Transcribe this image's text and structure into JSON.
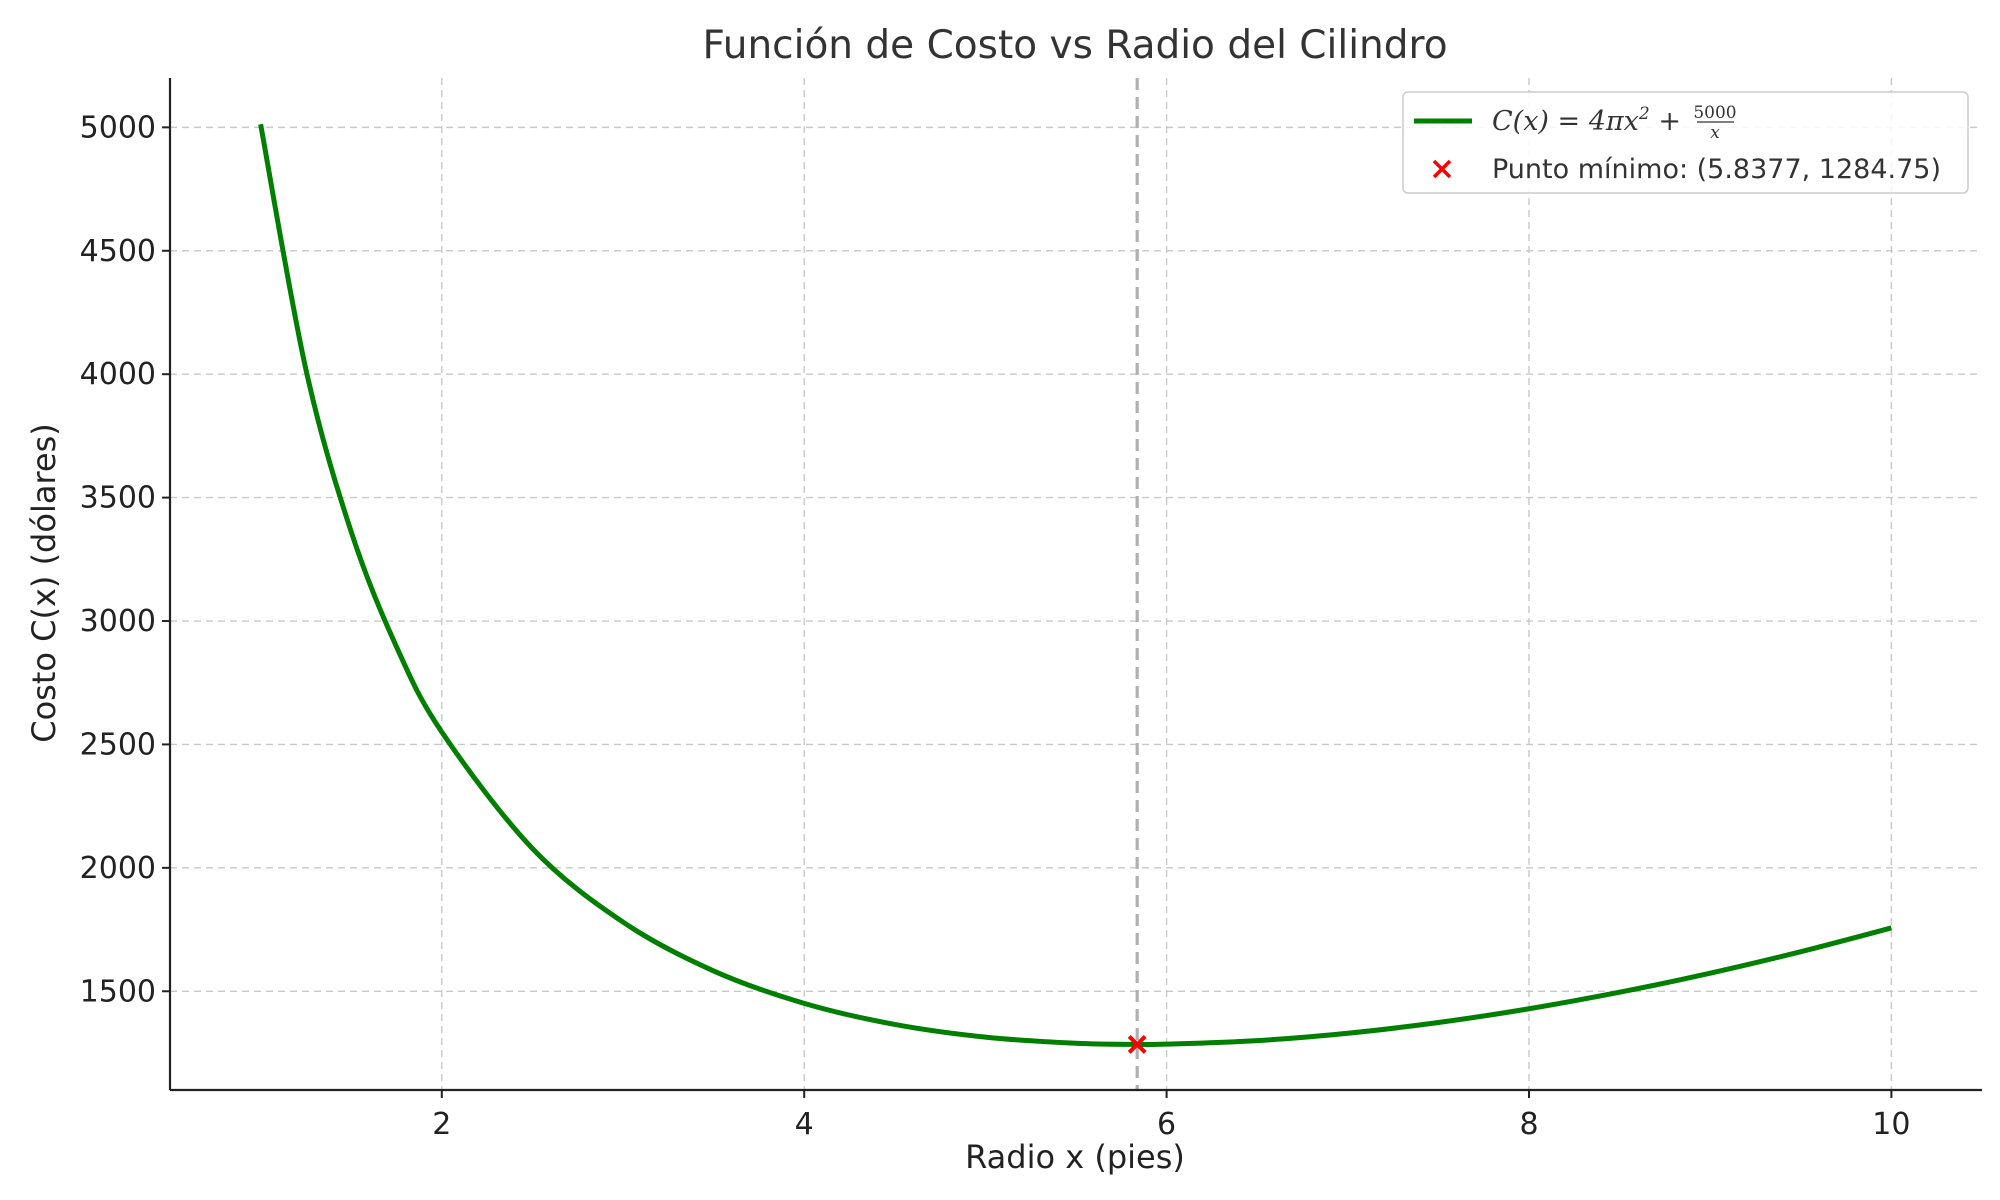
{
  "chart_data": {
    "type": "line",
    "title": "Función de Costo vs Radio del Cilindro",
    "xlabel": "Radio x (pies)",
    "ylabel": "Costo C(x) (dólares)",
    "xlim": [
      0.5,
      10.5
    ],
    "ylim": [
      1100,
      5200
    ],
    "xticks": [
      2,
      4,
      6,
      8,
      10
    ],
    "yticks": [
      1500,
      2000,
      2500,
      3000,
      3500,
      4000,
      4500,
      5000
    ],
    "grid": true,
    "legend_position": "top-right",
    "series": [
      {
        "name": "C(x) = 4πx² + 5000/x",
        "color": "#007f00",
        "x": [
          1.0,
          1.25,
          1.5,
          1.75,
          2.0,
          2.5,
          3.0,
          3.5,
          4.0,
          4.5,
          5.0,
          5.5,
          5.8377,
          6.0,
          6.5,
          7.0,
          7.5,
          8.0,
          8.5,
          9.0,
          9.5,
          10.0
        ],
        "y": [
          5012.6,
          4019.6,
          3361.6,
          2895.6,
          2550.3,
          2078.5,
          1780.4,
          1582.4,
          1451.1,
          1365.6,
          1314.2,
          1289.2,
          1284.75,
          1285.7,
          1300.1,
          1330.0,
          1373.5,
          1429.2,
          1496.1,
          1573.4,
          1660.4,
          1756.6
        ]
      }
    ],
    "markers": [
      {
        "name": "Punto mínimo: (5.8377, 1284.75)",
        "x": 5.8377,
        "y": 1284.75,
        "symbol": "x",
        "color": "#ff0000"
      }
    ],
    "vline": {
      "x": 5.8377,
      "color": "#b0b0b0",
      "style": "dashed"
    }
  },
  "legend": {
    "line_label": {
      "lhs": "C(x) = 4πx",
      "exp": "2",
      "plus": " + ",
      "num": "5000",
      "den": "x"
    },
    "marker_label": "Punto mínimo: (5.8377, 1284.75)"
  }
}
